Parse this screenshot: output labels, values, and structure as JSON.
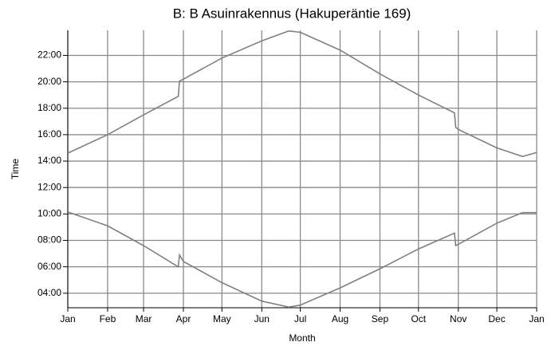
{
  "chart_data": {
    "type": "line",
    "title": "B: B Asuinrakennus (Hakuperäntie 169)",
    "x_label": "Month",
    "y_label": "Time",
    "x": [
      0,
      31,
      59,
      86,
      87,
      90,
      120,
      151,
      172,
      181,
      212,
      243,
      273,
      301,
      302,
      304,
      334,
      354,
      365
    ],
    "series": [
      {
        "color": "#808080",
        "values": [
          14.6,
          16.0,
          17.5,
          18.9,
          20.05,
          20.2,
          21.8,
          23.1,
          23.85,
          23.75,
          22.4,
          20.6,
          19.0,
          17.65,
          16.55,
          16.4,
          15.0,
          14.35,
          14.65
        ]
      },
      {
        "color": "#808080",
        "values": [
          10.15,
          9.1,
          7.6,
          6.0,
          6.9,
          6.4,
          4.8,
          3.4,
          2.95,
          3.1,
          4.4,
          5.85,
          7.35,
          8.55,
          7.6,
          7.7,
          9.3,
          10.1,
          10.1
        ]
      }
    ],
    "xlim": [
      0,
      365
    ],
    "xticks": [
      {
        "value": 0,
        "label": "Jan"
      },
      {
        "value": 31,
        "label": "Feb"
      },
      {
        "value": 59,
        "label": "Mar"
      },
      {
        "value": 90,
        "label": "Apr"
      },
      {
        "value": 120,
        "label": "May"
      },
      {
        "value": 151,
        "label": "Jun"
      },
      {
        "value": 181,
        "label": "Jul"
      },
      {
        "value": 212,
        "label": "Aug"
      },
      {
        "value": 243,
        "label": "Sep"
      },
      {
        "value": 273,
        "label": "Oct"
      },
      {
        "value": 304,
        "label": "Nov"
      },
      {
        "value": 334,
        "label": "Dec"
      },
      {
        "value": 365,
        "label": "Jan"
      }
    ],
    "ylim": [
      2.9,
      23.9
    ],
    "yticks": [
      {
        "value": 4,
        "label": "04:00"
      },
      {
        "value": 6,
        "label": "06:00"
      },
      {
        "value": 8,
        "label": "08:00"
      },
      {
        "value": 10,
        "label": "10:00"
      },
      {
        "value": 12,
        "label": "12:00"
      },
      {
        "value": 14,
        "label": "14:00"
      },
      {
        "value": 16,
        "label": "16:00"
      },
      {
        "value": 18,
        "label": "18:00"
      },
      {
        "value": 20,
        "label": "20:00"
      },
      {
        "value": 22,
        "label": "22:00"
      }
    ],
    "grid": true
  }
}
